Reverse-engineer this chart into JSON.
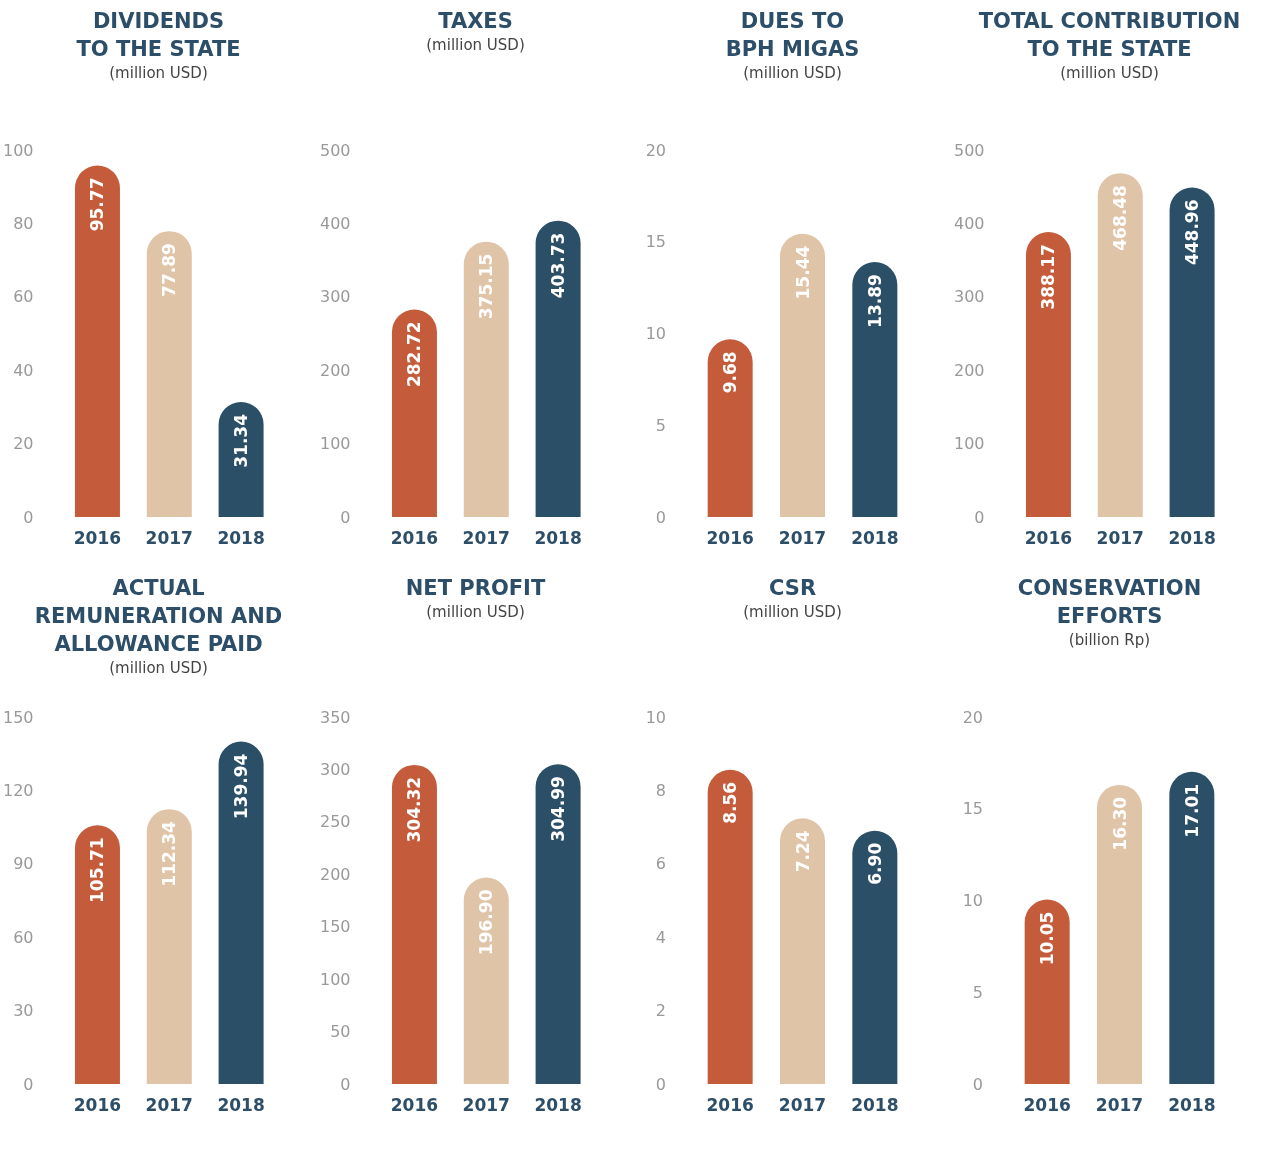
{
  "chart_data": [
    {
      "type": "bar",
      "title": "DIVIDENDS\nTO THE STATE",
      "subtitle": "(million USD)",
      "categories": [
        "2016",
        "2017",
        "2018"
      ],
      "values": [
        95.77,
        77.89,
        31.34
      ],
      "value_labels": [
        "95.77",
        "77.89",
        "31.34"
      ],
      "colors": [
        "#c45c3c",
        "#e0c4a8",
        "#2c4f68"
      ],
      "ylim": [
        0,
        100
      ],
      "yticks": [
        0,
        20,
        40,
        60,
        80,
        100
      ]
    },
    {
      "type": "bar",
      "title": "TAXES",
      "subtitle": "(million USD)",
      "categories": [
        "2016",
        "2017",
        "2018"
      ],
      "values": [
        282.72,
        375.15,
        403.73
      ],
      "value_labels": [
        "282.72",
        "375.15",
        "403.73"
      ],
      "colors": [
        "#c45c3c",
        "#e0c4a8",
        "#2c4f68"
      ],
      "ylim": [
        0,
        500
      ],
      "yticks": [
        0,
        100,
        200,
        300,
        400,
        500
      ]
    },
    {
      "type": "bar",
      "title": "DUES TO\nBPH MIGAS",
      "subtitle": "(million USD)",
      "categories": [
        "2016",
        "2017",
        "2018"
      ],
      "values": [
        9.68,
        15.44,
        13.89
      ],
      "value_labels": [
        "9.68",
        "15.44",
        "13.89"
      ],
      "colors": [
        "#c45c3c",
        "#e0c4a8",
        "#2c4f68"
      ],
      "ylim": [
        0,
        20
      ],
      "yticks": [
        0,
        5,
        10,
        15,
        20
      ]
    },
    {
      "type": "bar",
      "title": "TOTAL CONTRIBUTION\nTO THE STATE",
      "subtitle": "(million USD)",
      "categories": [
        "2016",
        "2017",
        "2018"
      ],
      "values": [
        388.17,
        468.48,
        448.96
      ],
      "value_labels": [
        "388.17",
        "468.48",
        "448.96"
      ],
      "colors": [
        "#c45c3c",
        "#e0c4a8",
        "#2c4f68"
      ],
      "ylim": [
        0,
        500
      ],
      "yticks": [
        0,
        100,
        200,
        300,
        400,
        500
      ]
    },
    {
      "type": "bar",
      "title": "ACTUAL\nREMUNERATION AND\nALLOWANCE PAID",
      "subtitle": "(million USD)",
      "categories": [
        "2016",
        "2017",
        "2018"
      ],
      "values": [
        105.71,
        112.34,
        139.94
      ],
      "value_labels": [
        "105.71",
        "112.34",
        "139.94"
      ],
      "colors": [
        "#c45c3c",
        "#e0c4a8",
        "#2c4f68"
      ],
      "ylim": [
        0,
        150
      ],
      "yticks": [
        0,
        30,
        60,
        90,
        120,
        150
      ]
    },
    {
      "type": "bar",
      "title": "NET PROFIT",
      "subtitle": "(million USD)",
      "categories": [
        "2016",
        "2017",
        "2018"
      ],
      "values": [
        304.32,
        196.9,
        304.99
      ],
      "value_labels": [
        "304.32",
        "196.90",
        "304.99"
      ],
      "colors": [
        "#c45c3c",
        "#e0c4a8",
        "#2c4f68"
      ],
      "ylim": [
        0,
        350
      ],
      "yticks": [
        0,
        50,
        100,
        150,
        200,
        250,
        300,
        350
      ]
    },
    {
      "type": "bar",
      "title": "CSR",
      "subtitle": "(million USD)",
      "categories": [
        "2016",
        "2017",
        "2018"
      ],
      "values": [
        8.56,
        7.24,
        6.9
      ],
      "value_labels": [
        "8.56",
        "7.24",
        "6.90"
      ],
      "colors": [
        "#c45c3c",
        "#e0c4a8",
        "#2c4f68"
      ],
      "ylim": [
        0,
        10
      ],
      "yticks": [
        0,
        2,
        4,
        6,
        8,
        10
      ]
    },
    {
      "type": "bar",
      "title": "CONSERVATION\nEFFORTS",
      "subtitle": "(billion Rp)",
      "categories": [
        "2016",
        "2017",
        "2018"
      ],
      "values": [
        10.05,
        16.3,
        17.01
      ],
      "value_labels": [
        "10.05",
        "16.30",
        "17.01"
      ],
      "colors": [
        "#c45c3c",
        "#e0c4a8",
        "#2c4f68"
      ],
      "ylim": [
        0,
        20
      ],
      "yticks": [
        0,
        5,
        10,
        15,
        20
      ]
    }
  ]
}
